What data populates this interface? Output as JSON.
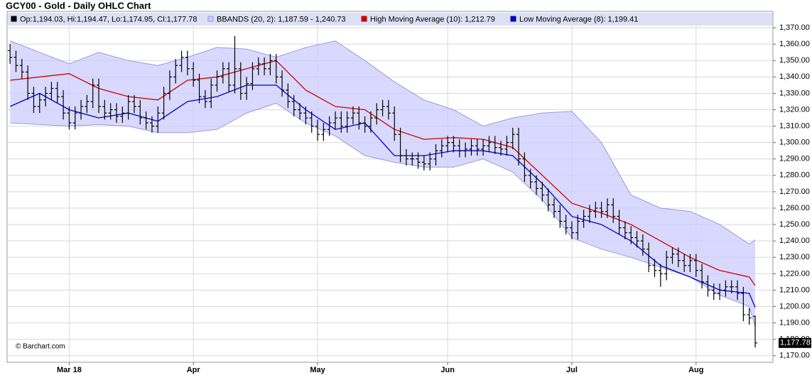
{
  "chart_data": {
    "type": "ohlc",
    "title": "GCY00 - Gold - Daily OHLC Chart",
    "annotation": "© Barchart.com",
    "xlim": [
      -0.5,
      129
    ],
    "ylim": [
      1166,
      1380
    ],
    "grid": true,
    "xticks": [
      {
        "value": 10,
        "label": "Mar 18"
      },
      {
        "value": 31,
        "label": "Apr"
      },
      {
        "value": 52,
        "label": "May"
      },
      {
        "value": 74,
        "label": "Jun"
      },
      {
        "value": 95,
        "label": "Jul"
      },
      {
        "value": 116,
        "label": "Aug"
      }
    ],
    "yticks": [
      {
        "value": 1170,
        "label": "1,170.00"
      },
      {
        "value": 1180,
        "label": "1,180.00"
      },
      {
        "value": 1190,
        "label": "1,190.00"
      },
      {
        "value": 1200,
        "label": "1,200.00"
      },
      {
        "value": 1210,
        "label": "1,210.00"
      },
      {
        "value": 1220,
        "label": "1,220.00"
      },
      {
        "value": 1230,
        "label": "1,230.00"
      },
      {
        "value": 1240,
        "label": "1,240.00"
      },
      {
        "value": 1250,
        "label": "1,250.00"
      },
      {
        "value": 1260,
        "label": "1,260.00"
      },
      {
        "value": 1270,
        "label": "1,270.00"
      },
      {
        "value": 1280,
        "label": "1,280.00"
      },
      {
        "value": 1290,
        "label": "1,290.00"
      },
      {
        "value": 1300,
        "label": "1,300.00"
      },
      {
        "value": 1310,
        "label": "1,310.00"
      },
      {
        "value": 1320,
        "label": "1,320.00"
      },
      {
        "value": 1330,
        "label": "1,330.00"
      },
      {
        "value": 1340,
        "label": "1,340.00"
      },
      {
        "value": 1350,
        "label": "1,350.00"
      },
      {
        "value": 1360,
        "label": "1,360.00"
      },
      {
        "value": 1370,
        "label": "1,370.00"
      }
    ],
    "last_price": {
      "value": 1177.78,
      "label": "1,177.78"
    },
    "series": [
      {
        "name": "Op:1,194.03, Hi:1,194.47, Lo:1,174.95, Cl:1,177.78",
        "color": "#000000",
        "open": [
          1356,
          1352,
          1347,
          1343,
          1330,
          1322,
          1326,
          1330,
          1333,
          1328,
          1318,
          1312,
          1318,
          1322,
          1325,
          1335,
          1322,
          1318,
          1320,
          1316,
          1318,
          1325,
          1322,
          1315,
          1312,
          1310,
          1318,
          1330,
          1340,
          1347,
          1352,
          1345,
          1338,
          1328,
          1325,
          1335,
          1340,
          1345,
          1335,
          1345,
          1330,
          1336,
          1345,
          1348,
          1345,
          1350,
          1340,
          1332,
          1325,
          1320,
          1318,
          1315,
          1310,
          1305,
          1308,
          1312,
          1315,
          1310,
          1315,
          1318,
          1312,
          1310,
          1315,
          1320,
          1322,
          1318,
          1305,
          1292,
          1290,
          1290,
          1288,
          1287,
          1290,
          1295,
          1298,
          1300,
          1298,
          1295,
          1296,
          1298,
          1296,
          1298,
          1300,
          1297,
          1296,
          1300,
          1305,
          1290,
          1280,
          1276,
          1272,
          1268,
          1262,
          1258,
          1252,
          1248,
          1245,
          1252,
          1255,
          1258,
          1260,
          1258,
          1262,
          1255,
          1248,
          1245,
          1242,
          1240,
          1235,
          1225,
          1222,
          1220,
          1230,
          1232,
          1228,
          1225,
          1228,
          1222,
          1215,
          1210,
          1208,
          1210,
          1212,
          1212,
          1208,
          1195,
          1194.03
        ],
        "high": [
          1360,
          1356,
          1351,
          1347,
          1334,
          1330,
          1334,
          1337,
          1337,
          1332,
          1322,
          1322,
          1326,
          1329,
          1339,
          1339,
          1326,
          1324,
          1324,
          1322,
          1329,
          1329,
          1326,
          1319,
          1316,
          1322,
          1334,
          1344,
          1351,
          1356,
          1356,
          1349,
          1342,
          1332,
          1339,
          1344,
          1349,
          1349,
          1365,
          1349,
          1340,
          1349,
          1352,
          1352,
          1354,
          1354,
          1344,
          1336,
          1329,
          1324,
          1322,
          1319,
          1314,
          1312,
          1316,
          1319,
          1319,
          1319,
          1322,
          1322,
          1316,
          1319,
          1324,
          1326,
          1326,
          1322,
          1309,
          1296,
          1294,
          1294,
          1292,
          1294,
          1299,
          1302,
          1304,
          1304,
          1302,
          1300,
          1302,
          1302,
          1302,
          1304,
          1304,
          1301,
          1304,
          1309,
          1309,
          1294,
          1284,
          1280,
          1276,
          1272,
          1266,
          1262,
          1256,
          1252,
          1256,
          1259,
          1262,
          1264,
          1264,
          1266,
          1266,
          1259,
          1252,
          1249,
          1246,
          1244,
          1239,
          1229,
          1226,
          1234,
          1236,
          1236,
          1232,
          1232,
          1232,
          1226,
          1219,
          1214,
          1214,
          1216,
          1216,
          1216,
          1212,
          1199,
          1194.47
        ],
        "low": [
          1348,
          1343,
          1339,
          1326,
          1318,
          1318,
          1322,
          1326,
          1324,
          1314,
          1308,
          1308,
          1314,
          1318,
          1321,
          1318,
          1314,
          1314,
          1312,
          1312,
          1314,
          1318,
          1311,
          1308,
          1306,
          1306,
          1314,
          1326,
          1336,
          1343,
          1341,
          1334,
          1324,
          1321,
          1321,
          1331,
          1336,
          1331,
          1330,
          1326,
          1326,
          1332,
          1341,
          1341,
          1341,
          1336,
          1328,
          1321,
          1316,
          1314,
          1311,
          1306,
          1301,
          1301,
          1304,
          1308,
          1306,
          1306,
          1311,
          1308,
          1306,
          1306,
          1311,
          1316,
          1314,
          1301,
          1288,
          1286,
          1286,
          1284,
          1283,
          1283,
          1286,
          1291,
          1294,
          1294,
          1291,
          1291,
          1292,
          1292,
          1292,
          1294,
          1293,
          1292,
          1292,
          1296,
          1286,
          1276,
          1272,
          1268,
          1264,
          1258,
          1254,
          1248,
          1244,
          1241,
          1241,
          1248,
          1251,
          1254,
          1254,
          1254,
          1251,
          1244,
          1241,
          1238,
          1236,
          1231,
          1221,
          1218,
          1212,
          1216,
          1226,
          1224,
          1221,
          1221,
          1218,
          1211,
          1206,
          1204,
          1204,
          1206,
          1208,
          1204,
          1191,
          1189,
          1174.95
        ],
        "close": [
          1352,
          1347,
          1343,
          1330,
          1322,
          1326,
          1330,
          1333,
          1328,
          1318,
          1312,
          1318,
          1322,
          1325,
          1335,
          1322,
          1318,
          1320,
          1316,
          1318,
          1325,
          1322,
          1315,
          1312,
          1310,
          1318,
          1330,
          1340,
          1347,
          1352,
          1345,
          1338,
          1328,
          1325,
          1335,
          1340,
          1345,
          1335,
          1345,
          1330,
          1336,
          1345,
          1348,
          1345,
          1350,
          1340,
          1332,
          1325,
          1320,
          1318,
          1315,
          1310,
          1305,
          1308,
          1312,
          1315,
          1310,
          1315,
          1318,
          1312,
          1310,
          1315,
          1320,
          1322,
          1318,
          1305,
          1292,
          1290,
          1290,
          1288,
          1287,
          1290,
          1295,
          1298,
          1300,
          1298,
          1295,
          1296,
          1298,
          1296,
          1298,
          1300,
          1297,
          1296,
          1300,
          1305,
          1290,
          1280,
          1276,
          1272,
          1268,
          1262,
          1258,
          1252,
          1248,
          1245,
          1252,
          1255,
          1258,
          1260,
          1258,
          1262,
          1255,
          1248,
          1245,
          1242,
          1240,
          1235,
          1225,
          1222,
          1220,
          1230,
          1232,
          1228,
          1225,
          1228,
          1222,
          1215,
          1210,
          1208,
          1210,
          1212,
          1212,
          1208,
          1195,
          1193,
          1177.78
        ]
      },
      {
        "name": "BBANDS (20, 2): 1,187.59 - 1,240.73",
        "color": "#9999dd",
        "fill": "#ccccff",
        "x": [
          0,
          5,
          10,
          15,
          20,
          25,
          30,
          35,
          40,
          45,
          50,
          55,
          60,
          65,
          70,
          75,
          80,
          85,
          90,
          95,
          100,
          105,
          110,
          115,
          120,
          125,
          126
        ],
        "upper": [
          1362,
          1355,
          1348,
          1355,
          1350,
          1347,
          1352,
          1358,
          1357,
          1352,
          1358,
          1362,
          1350,
          1337,
          1326,
          1320,
          1310,
          1315,
          1318,
          1319,
          1300,
          1268,
          1260,
          1258,
          1250,
          1238,
          1240.73
        ],
        "lower": [
          1312,
          1311,
          1310,
          1311,
          1310,
          1306,
          1306,
          1308,
          1318,
          1324,
          1312,
          1304,
          1292,
          1288,
          1285,
          1285,
          1290,
          1282,
          1265,
          1242,
          1235,
          1230,
          1224,
          1218,
          1207,
          1200,
          1187.59
        ]
      },
      {
        "name": "High Moving Average (10): 1,212.79",
        "color": "#cc0000",
        "x": [
          0,
          5,
          10,
          15,
          20,
          25,
          30,
          35,
          40,
          45,
          50,
          55,
          60,
          65,
          70,
          75,
          80,
          85,
          90,
          95,
          100,
          105,
          110,
          115,
          120,
          125,
          126
        ],
        "values": [
          1338,
          1340,
          1342,
          1333,
          1328,
          1326,
          1338,
          1340,
          1345,
          1350,
          1332,
          1322,
          1320,
          1308,
          1302,
          1303,
          1302,
          1297,
          1280,
          1263,
          1257,
          1250,
          1240,
          1230,
          1222,
          1218,
          1212.79
        ]
      },
      {
        "name": "Low Moving Average (8): 1,199.41",
        "color": "#0000cc",
        "x": [
          0,
          5,
          10,
          15,
          20,
          25,
          30,
          35,
          40,
          45,
          50,
          55,
          60,
          65,
          70,
          75,
          80,
          85,
          90,
          95,
          100,
          105,
          110,
          115,
          120,
          125,
          126
        ],
        "values": [
          1322,
          1330,
          1320,
          1315,
          1318,
          1313,
          1325,
          1328,
          1335,
          1335,
          1320,
          1308,
          1312,
          1292,
          1292,
          1295,
          1295,
          1292,
          1275,
          1255,
          1250,
          1240,
          1225,
          1218,
          1210,
          1208,
          1199.41
        ]
      }
    ]
  }
}
